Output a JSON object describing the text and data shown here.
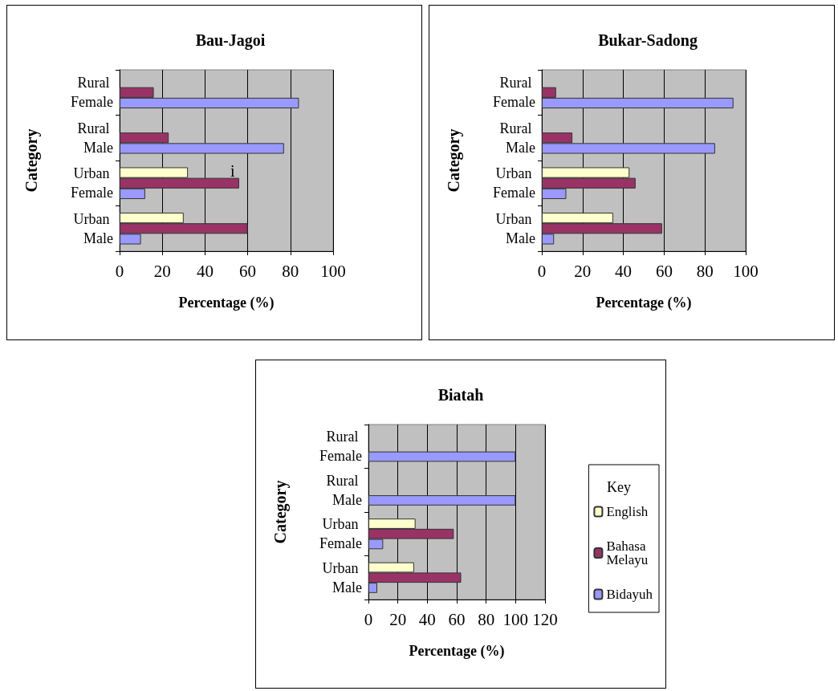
{
  "chart_data": [
    {
      "type": "bar",
      "orientation": "horizontal",
      "title": "Bau-Jagoi",
      "xlabel": "Percentage (%)",
      "ylabel": "Category",
      "categories": [
        "Rural Female",
        "Rural Male",
        "Urban Female",
        "Urban Male"
      ],
      "series": [
        {
          "color": "#ffffcc",
          "values": [
            null,
            null,
            32,
            30
          ]
        },
        {
          "color": "#993366",
          "values": [
            16,
            23,
            56,
            60
          ]
        },
        {
          "color": "#9999ff",
          "values": [
            84,
            77,
            12,
            10
          ]
        }
      ],
      "xlim": [
        0,
        100
      ],
      "xticks": [
        0,
        20,
        40,
        60,
        80,
        100
      ],
      "grid": "x",
      "annotations": [
        "i"
      ]
    },
    {
      "type": "bar",
      "orientation": "horizontal",
      "title": "Bukar-Sadong",
      "xlabel": "Percentage (%)",
      "ylabel": "Category",
      "categories": [
        "Rural Female",
        "Rural Male",
        "Urban Female",
        "Urban Male"
      ],
      "series": [
        {
          "color": "#ffffcc",
          "values": [
            null,
            null,
            43,
            35
          ]
        },
        {
          "color": "#993366",
          "values": [
            7,
            15,
            46,
            59
          ]
        },
        {
          "color": "#9999ff",
          "values": [
            94,
            85,
            12,
            6
          ]
        }
      ],
      "xlim": [
        0,
        100
      ],
      "xticks": [
        0,
        20,
        40,
        60,
        80,
        100
      ],
      "grid": "x"
    },
    {
      "type": "bar",
      "orientation": "horizontal",
      "title": "Biatah",
      "xlabel": "Percentage (%)",
      "ylabel": "Category",
      "legend_title": "Key",
      "legend": "right",
      "categories": [
        "Rural Female",
        "Rural Male",
        "Urban Female",
        "Urban Male"
      ],
      "series": [
        {
          "name": "English",
          "color": "#ffffcc",
          "values": [
            null,
            null,
            32,
            31
          ]
        },
        {
          "name": "Bahasa Melayu",
          "color": "#993366",
          "values": [
            null,
            null,
            58,
            63
          ]
        },
        {
          "name": "Bidayuh",
          "color": "#9999ff",
          "values": [
            100,
            100,
            10,
            6
          ]
        }
      ],
      "xlim": [
        0,
        120
      ],
      "xticks": [
        0,
        20,
        40,
        60,
        80,
        100,
        120
      ],
      "grid": "x"
    }
  ]
}
